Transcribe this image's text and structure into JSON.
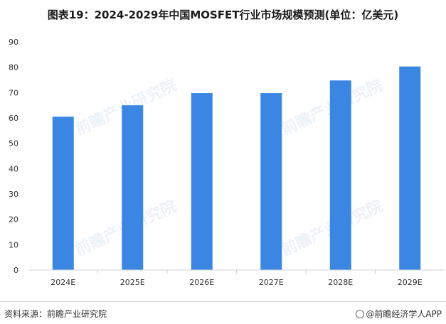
{
  "header": {
    "title": "图表19：2024-2029年中国MOSFET行业市场规模预测(单位：亿美元)"
  },
  "chart_data": {
    "type": "bar",
    "categories": [
      "2024E",
      "2025E",
      "2026E",
      "2027E",
      "2028E",
      "2029E"
    ],
    "values": [
      60.5,
      65,
      69.8,
      69.8,
      74.8,
      80.3
    ],
    "ylim": [
      0,
      90
    ],
    "yticks": [
      "0",
      "10",
      "20",
      "30",
      "40",
      "50",
      "60",
      "70",
      "80",
      "90"
    ],
    "bar_color": "#3b86e3",
    "grid": false
  },
  "footer": {
    "source": "资料来源：前瞻产业研究院",
    "app": "@前瞻经济学人APP"
  },
  "watermark": {
    "text": "前瞻产业研究院"
  }
}
